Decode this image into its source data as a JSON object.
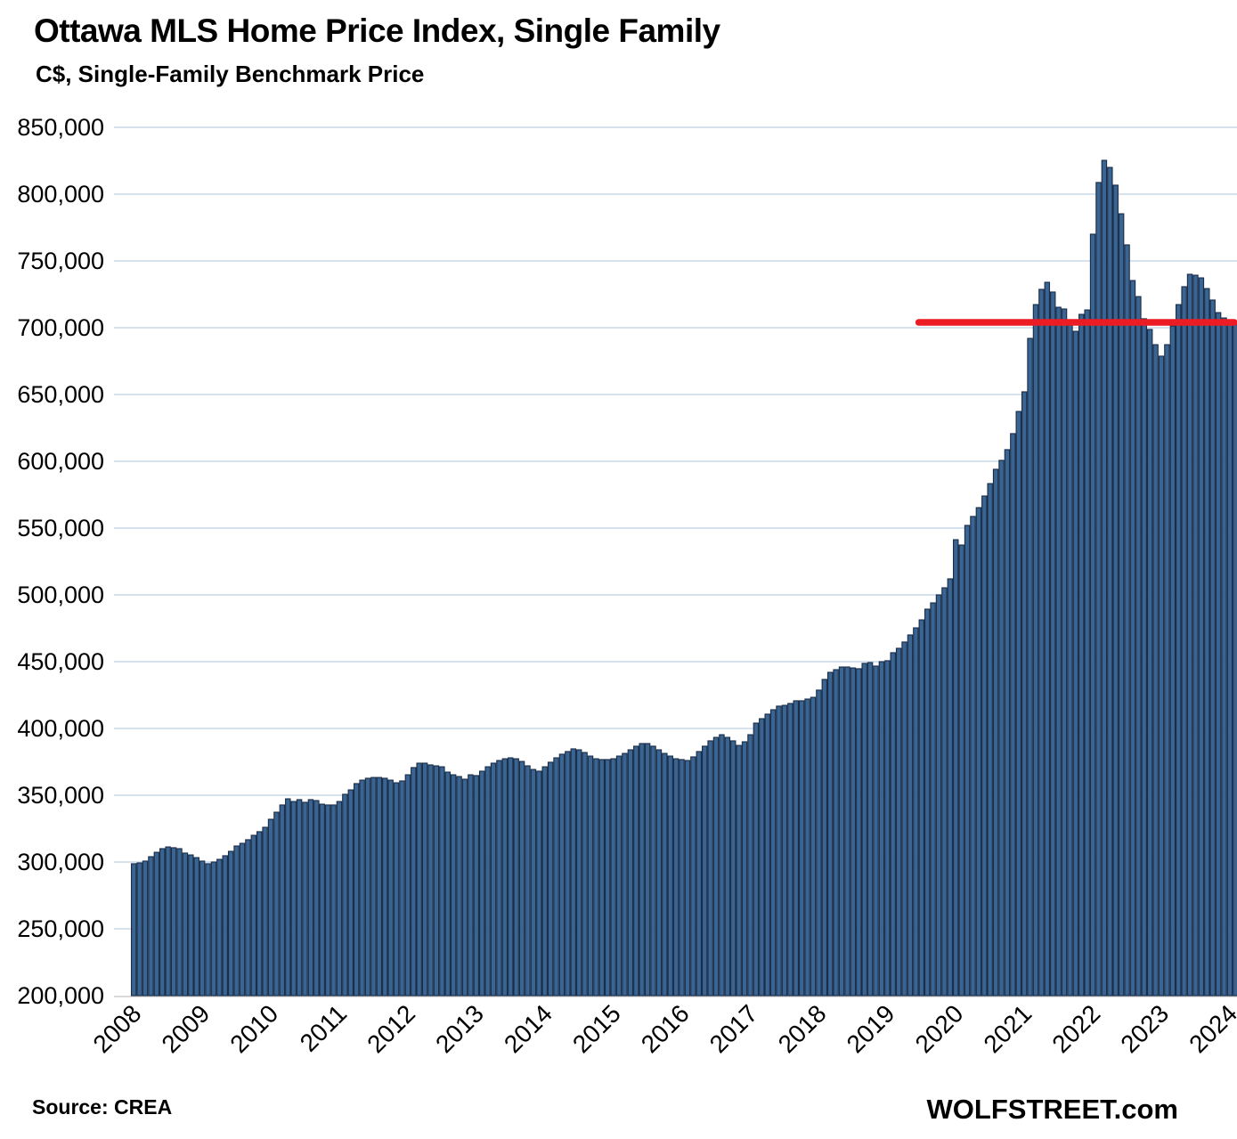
{
  "header": {
    "title": "Ottawa MLS Home Price Index, Single Family",
    "subtitle": "C$, Single-Family Benchmark Price"
  },
  "footer": {
    "source": "Source: CREA",
    "brand": "WOLFSTREET.com"
  },
  "chart_data": {
    "type": "bar",
    "title": "Ottawa MLS Home Price Index, Single Family",
    "subtitle": "C$, Single-Family Benchmark Price",
    "unit": "C$",
    "ylabel": "",
    "xlabel": "",
    "ylim": [
      200000,
      850000
    ],
    "ytick_step": 50000,
    "grid": true,
    "x_start": {
      "year": 2008,
      "month": 1
    },
    "x_end": {
      "year": 2024,
      "month": 2
    },
    "xtick_years": [
      2008,
      2009,
      2010,
      2011,
      2012,
      2013,
      2014,
      2015,
      2016,
      2017,
      2018,
      2019,
      2020,
      2021,
      2022,
      2023,
      2024
    ],
    "bar_color": "#3a6491",
    "bar_border_color": "#1a2e49",
    "gridline_color": "#bfd1e5",
    "baseline_color": "#d9d9d9",
    "red_line": {
      "value": 704000,
      "start_year": 2019,
      "start_month": 7,
      "color": "#ec1c24"
    },
    "monthly_values": [
      298700,
      299300,
      300700,
      304000,
      307300,
      310000,
      311300,
      310700,
      310000,
      306700,
      305300,
      303300,
      300700,
      298700,
      300000,
      302000,
      304700,
      308000,
      312000,
      314000,
      316700,
      320000,
      322700,
      326000,
      332000,
      337300,
      342700,
      347300,
      345300,
      346700,
      344700,
      346700,
      346000,
      343300,
      342700,
      342700,
      345300,
      350700,
      354000,
      358700,
      361300,
      362700,
      363300,
      363300,
      362700,
      361300,
      359300,
      360700,
      365300,
      370700,
      374000,
      374000,
      372700,
      372000,
      371300,
      367300,
      365300,
      364000,
      362000,
      365300,
      364700,
      368000,
      371300,
      374000,
      376000,
      377300,
      378000,
      377300,
      375300,
      372000,
      369300,
      368000,
      371300,
      374700,
      378000,
      380700,
      382700,
      384700,
      384000,
      382000,
      379300,
      377300,
      376700,
      376700,
      377300,
      379300,
      381300,
      384000,
      386700,
      388700,
      388700,
      386700,
      384000,
      381300,
      379300,
      377300,
      376700,
      376000,
      378700,
      382700,
      386700,
      390700,
      393300,
      395300,
      393300,
      390700,
      387300,
      390000,
      395300,
      404000,
      407300,
      410700,
      414000,
      416700,
      417300,
      418700,
      420700,
      420700,
      422000,
      423300,
      428700,
      436700,
      442000,
      444000,
      446000,
      446000,
      445300,
      444700,
      448700,
      449300,
      446700,
      450000,
      450700,
      456700,
      460000,
      464700,
      470000,
      475300,
      481300,
      489300,
      494000,
      500000,
      505300,
      512000,
      541300,
      537300,
      552000,
      558700,
      565300,
      574000,
      583300,
      594000,
      600700,
      608700,
      620700,
      637300,
      652000,
      692000,
      717300,
      728700,
      734000,
      726700,
      715300,
      714000,
      702000,
      697300,
      710000,
      713300,
      770000,
      808700,
      825300,
      820000,
      806700,
      785300,
      762000,
      735300,
      723300,
      706700,
      698700,
      687300,
      678700,
      687300,
      701300,
      717300,
      730700,
      740000,
      739300,
      737300,
      729300,
      720700,
      711300,
      707300,
      705300,
      704700
    ]
  }
}
